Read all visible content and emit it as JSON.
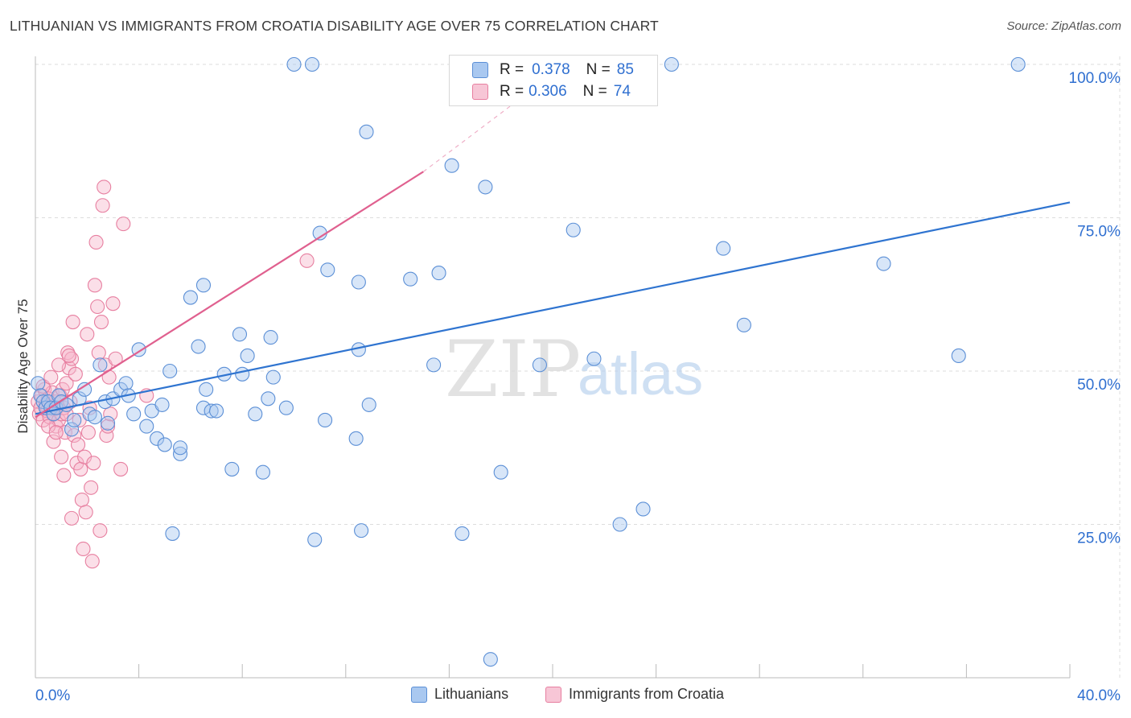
{
  "title": "LITHUANIAN VS IMMIGRANTS FROM CROATIA DISABILITY AGE OVER 75 CORRELATION CHART",
  "source": "Source: ZipAtlas.com",
  "watermark": {
    "zip": "ZIP",
    "atlas": "atlas"
  },
  "stats_box": {
    "rows": [
      {
        "r_label": "R =",
        "r_value": "0.378",
        "n_label": "N =",
        "n_value": "85"
      },
      {
        "r_label": "R =",
        "r_value": "0.306",
        "n_label": "N =",
        "n_value": "74"
      }
    ]
  },
  "legend": {
    "series1": "Lithuanians",
    "series2": "Immigrants from Croatia"
  },
  "colors": {
    "blue_fill": "#a9c8f0",
    "blue_stroke": "#5b8fd6",
    "blue_line": "#2f74d0",
    "pink_fill": "#f7b8cc",
    "pink_stroke": "#e77fa0",
    "pink_line": "#e0608f",
    "tick_text": "#2f6fd0",
    "grid": "#dddddd"
  },
  "chart_data": {
    "type": "scatter",
    "title": "LITHUANIAN VS IMMIGRANTS FROM CROATIA DISABILITY AGE OVER 75 CORRELATION CHART",
    "xlabel": "",
    "ylabel": "Disability Age Over 75",
    "xlim": [
      0,
      40
    ],
    "ylim": [
      0,
      105
    ],
    "x_tick_labels": [
      "0.0%",
      "40.0%"
    ],
    "y_tick_labels": [
      "25.0%",
      "50.0%",
      "75.0%",
      "100.0%"
    ],
    "y_ticks": [
      25,
      50,
      75,
      100
    ],
    "grid": true,
    "legend_position": "bottom",
    "series": [
      {
        "name": "Lithuanians",
        "R": 0.378,
        "N": 85,
        "trend": {
          "x": [
            0,
            40
          ],
          "y": [
            43.0,
            77.5
          ],
          "dashed_extension": false
        },
        "points": [
          [
            0.1,
            48
          ],
          [
            0.2,
            46
          ],
          [
            0.3,
            45
          ],
          [
            0.4,
            44
          ],
          [
            0.5,
            45
          ],
          [
            0.6,
            44
          ],
          [
            0.7,
            43
          ],
          [
            0.8,
            44
          ],
          [
            0.9,
            46
          ],
          [
            1.0,
            45
          ],
          [
            1.2,
            44.5
          ],
          [
            1.4,
            40.5
          ],
          [
            1.5,
            42
          ],
          [
            1.7,
            45.5
          ],
          [
            1.9,
            47
          ],
          [
            2.1,
            43
          ],
          [
            2.3,
            42.5
          ],
          [
            2.5,
            51
          ],
          [
            2.7,
            45
          ],
          [
            3.0,
            45.5
          ],
          [
            3.3,
            47
          ],
          [
            3.5,
            48
          ],
          [
            3.6,
            46
          ],
          [
            3.8,
            43
          ],
          [
            4.0,
            53.5
          ],
          [
            4.3,
            41
          ],
          [
            4.5,
            43.5
          ],
          [
            4.7,
            39
          ],
          [
            4.9,
            44.5
          ],
          [
            5.0,
            38
          ],
          [
            5.2,
            50
          ],
          [
            5.3,
            23.5
          ],
          [
            5.6,
            36.5
          ],
          [
            6.0,
            62
          ],
          [
            6.3,
            54
          ],
          [
            6.5,
            44
          ],
          [
            6.6,
            47
          ],
          [
            6.8,
            43.5
          ],
          [
            7.0,
            43.5
          ],
          [
            7.3,
            49.5
          ],
          [
            7.6,
            34
          ],
          [
            7.9,
            56
          ],
          [
            8.0,
            49.5
          ],
          [
            8.2,
            52.5
          ],
          [
            8.5,
            43
          ],
          [
            8.8,
            33.5
          ],
          [
            9.0,
            45.5
          ],
          [
            9.1,
            55.5
          ],
          [
            9.2,
            49
          ],
          [
            9.7,
            44
          ],
          [
            10.0,
            100
          ],
          [
            10.7,
            100
          ],
          [
            10.8,
            22.5
          ],
          [
            11.0,
            72.5
          ],
          [
            11.2,
            42
          ],
          [
            11.3,
            66.5
          ],
          [
            12.4,
            39
          ],
          [
            12.5,
            64.5
          ],
          [
            12.5,
            53.5
          ],
          [
            12.6,
            24
          ],
          [
            12.8,
            89
          ],
          [
            12.9,
            44.5
          ],
          [
            14.5,
            65
          ],
          [
            15.4,
            51
          ],
          [
            15.6,
            66
          ],
          [
            16.1,
            83.5
          ],
          [
            16.5,
            23.5
          ],
          [
            17.4,
            80
          ],
          [
            17.6,
            3
          ],
          [
            18.0,
            33.5
          ],
          [
            19.5,
            51
          ],
          [
            20.8,
            73
          ],
          [
            21.0,
            100
          ],
          [
            21.6,
            52
          ],
          [
            22.6,
            25
          ],
          [
            23.5,
            27.5
          ],
          [
            24.6,
            100
          ],
          [
            26.6,
            70
          ],
          [
            27.4,
            57.5
          ],
          [
            32.8,
            67.5
          ],
          [
            35.7,
            52.5
          ],
          [
            38.0,
            100
          ],
          [
            2.8,
            41.5
          ],
          [
            6.5,
            64
          ],
          [
            5.6,
            37.5
          ]
        ]
      },
      {
        "name": "Immigrants from Croatia",
        "R": 0.306,
        "N": 74,
        "trend": {
          "x": [
            0,
            15
          ],
          "y": [
            42.5,
            82.5
          ],
          "dashed_extension": true,
          "dash_to": [
            20.5,
            100
          ]
        },
        "points": [
          [
            0.1,
            45
          ],
          [
            0.15,
            43
          ],
          [
            0.2,
            44
          ],
          [
            0.25,
            46
          ],
          [
            0.3,
            42
          ],
          [
            0.35,
            47
          ],
          [
            0.4,
            44.5
          ],
          [
            0.45,
            43.5
          ],
          [
            0.5,
            45.5
          ],
          [
            0.55,
            42.5
          ],
          [
            0.6,
            44
          ],
          [
            0.65,
            46.5
          ],
          [
            0.7,
            43
          ],
          [
            0.75,
            45
          ],
          [
            0.8,
            41
          ],
          [
            0.85,
            44
          ],
          [
            0.9,
            42
          ],
          [
            0.95,
            46
          ],
          [
            1.0,
            43
          ],
          [
            1.05,
            47
          ],
          [
            1.1,
            44
          ],
          [
            1.15,
            40
          ],
          [
            1.2,
            48
          ],
          [
            1.25,
            53
          ],
          [
            1.3,
            50.5
          ],
          [
            1.35,
            45
          ],
          [
            1.4,
            52
          ],
          [
            1.45,
            58
          ],
          [
            1.5,
            39.5
          ],
          [
            1.55,
            49.5
          ],
          [
            1.6,
            35
          ],
          [
            1.65,
            38
          ],
          [
            1.7,
            42
          ],
          [
            1.75,
            34
          ],
          [
            1.8,
            29
          ],
          [
            1.85,
            21
          ],
          [
            1.9,
            36
          ],
          [
            1.95,
            27
          ],
          [
            2.0,
            56
          ],
          [
            2.05,
            40
          ],
          [
            2.1,
            44
          ],
          [
            2.15,
            31
          ],
          [
            2.2,
            19
          ],
          [
            2.25,
            35
          ],
          [
            2.3,
            64
          ],
          [
            2.35,
            71
          ],
          [
            2.4,
            60.5
          ],
          [
            2.45,
            53
          ],
          [
            2.5,
            24
          ],
          [
            2.55,
            58
          ],
          [
            2.6,
            77
          ],
          [
            2.65,
            80
          ],
          [
            2.7,
            51
          ],
          [
            2.75,
            39.5
          ],
          [
            2.8,
            41
          ],
          [
            2.85,
            49
          ],
          [
            2.9,
            43
          ],
          [
            3.0,
            61
          ],
          [
            3.1,
            52
          ],
          [
            3.3,
            34
          ],
          [
            3.4,
            74
          ],
          [
            4.3,
            46
          ],
          [
            10.5,
            68
          ],
          [
            0.5,
            41
          ],
          [
            0.7,
            38.5
          ],
          [
            0.9,
            51
          ],
          [
            1.0,
            36
          ],
          [
            1.2,
            43
          ],
          [
            1.4,
            26
          ],
          [
            0.3,
            47.5
          ],
          [
            0.6,
            49
          ],
          [
            0.8,
            40
          ],
          [
            1.1,
            33
          ],
          [
            1.3,
            52.5
          ]
        ]
      }
    ]
  }
}
